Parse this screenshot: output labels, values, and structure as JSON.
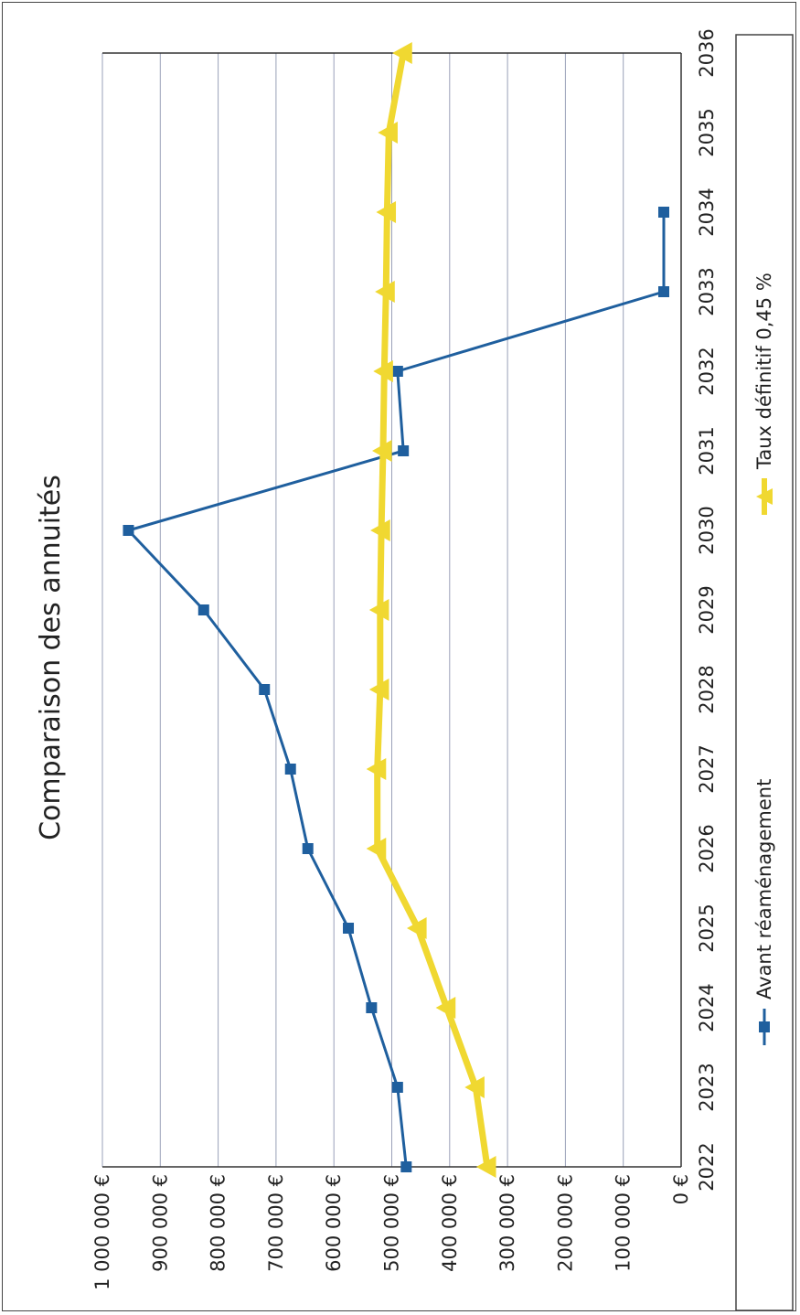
{
  "chart_data": {
    "type": "line",
    "title": "Comparaison des annuités",
    "xlabel": "",
    "ylabel": "",
    "categories": [
      "2022",
      "2023",
      "2024",
      "2025",
      "2026",
      "2027",
      "2028",
      "2029",
      "2030",
      "2031",
      "2032",
      "2033",
      "2034",
      "2035",
      "2036"
    ],
    "y_ticks": [
      0,
      100000,
      200000,
      300000,
      400000,
      500000,
      600000,
      700000,
      800000,
      900000,
      1000000
    ],
    "y_tick_labels": [
      "0 €",
      "100 000 €",
      "200 000 €",
      "300 000 €",
      "400 000 €",
      "500 000 €",
      "600 000 €",
      "700 000 €",
      "800 000 €",
      "900 000 €",
      "1 000 000 €"
    ],
    "ylim": [
      0,
      1000000
    ],
    "grid": true,
    "legend_position": "bottom",
    "series": [
      {
        "name": "Avant réaménagement",
        "color": "#1f5f9e",
        "marker": "square",
        "values": [
          475000,
          490000,
          535000,
          575000,
          645000,
          675000,
          720000,
          825000,
          955000,
          480000,
          490000,
          30000,
          30000,
          null,
          null
        ]
      },
      {
        "name": "Taux définitif 0,45 %",
        "color": "#f0d831",
        "marker": "triangle",
        "values": [
          335000,
          355000,
          405000,
          455000,
          525000,
          525000,
          520000,
          520000,
          518000,
          515000,
          513000,
          510000,
          508000,
          505000,
          480000
        ]
      }
    ]
  }
}
